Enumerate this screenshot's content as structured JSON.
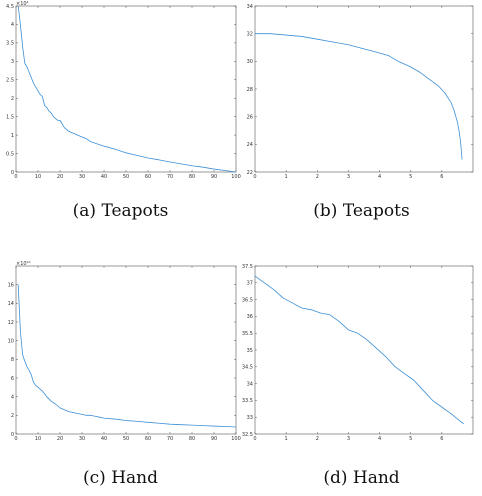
{
  "captions": [
    "(a) Teapots",
    "(b) Teapots",
    "(c) Hand",
    "(d) Hand"
  ],
  "line_color": "#3c8fd6",
  "chart_data": [
    {
      "type": "line",
      "title": "",
      "xlabel": "",
      "ylabel": "",
      "xlim": [
        0,
        100
      ],
      "ylim": [
        0,
        4.5
      ],
      "xticks": [
        0,
        10,
        20,
        30,
        40,
        50,
        60,
        70,
        80,
        90,
        100
      ],
      "yticks": [
        0,
        0.5,
        1,
        1.5,
        2,
        2.5,
        3,
        3.5,
        4,
        4.5
      ],
      "y_exponent_label": "×10⁴",
      "series": [
        {
          "x": [
            1,
            2,
            3,
            4,
            5,
            6,
            7,
            8,
            9,
            10,
            11,
            12,
            13,
            14,
            15,
            16,
            17,
            18,
            19,
            20,
            22,
            24,
            26,
            28,
            30,
            32,
            34,
            36,
            38,
            40,
            45,
            50,
            55,
            60,
            65,
            70,
            75,
            80,
            85,
            90,
            95,
            100
          ],
          "y": [
            4.5,
            4.0,
            3.4,
            2.95,
            2.85,
            2.7,
            2.55,
            2.4,
            2.3,
            2.2,
            2.1,
            2.05,
            1.8,
            1.75,
            1.65,
            1.6,
            1.5,
            1.45,
            1.4,
            1.4,
            1.2,
            1.1,
            1.05,
            1.0,
            0.95,
            0.9,
            0.82,
            0.78,
            0.74,
            0.7,
            0.62,
            0.52,
            0.45,
            0.38,
            0.33,
            0.27,
            0.22,
            0.17,
            0.13,
            0.08,
            0.04,
            0.0
          ]
        }
      ]
    },
    {
      "type": "line",
      "title": "",
      "xlabel": "",
      "ylabel": "",
      "xlim": [
        0,
        7
      ],
      "ylim": [
        22,
        34
      ],
      "xticks": [
        0,
        1,
        2,
        3,
        4,
        5,
        6
      ],
      "yticks": [
        22,
        24,
        26,
        28,
        30,
        32,
        34
      ],
      "series": [
        {
          "x": [
            0,
            0.5,
            1,
            1.5,
            2,
            2.5,
            3,
            3.5,
            4,
            4.3,
            4.6,
            5,
            5.3,
            5.6,
            5.9,
            6.1,
            6.3,
            6.4,
            6.5,
            6.55,
            6.6,
            6.63,
            6.65
          ],
          "y": [
            32,
            32,
            31.9,
            31.8,
            31.6,
            31.4,
            31.2,
            30.9,
            30.6,
            30.4,
            30.0,
            29.6,
            29.2,
            28.7,
            28.2,
            27.7,
            27.0,
            26.4,
            25.6,
            25.0,
            24.2,
            23.4,
            22.9
          ]
        }
      ]
    },
    {
      "type": "line",
      "title": "",
      "xlabel": "",
      "ylabel": "",
      "xlim": [
        0,
        100
      ],
      "ylim": [
        0,
        18
      ],
      "xticks": [
        0,
        10,
        20,
        30,
        40,
        50,
        60,
        70,
        80,
        90,
        100
      ],
      "yticks": [
        0,
        2,
        4,
        6,
        8,
        10,
        12,
        14,
        16
      ],
      "y_exponent_label": "×10¹⁰",
      "series": [
        {
          "x": [
            1,
            2,
            3,
            4,
            5,
            6,
            7,
            8,
            9,
            10,
            12,
            14,
            16,
            18,
            20,
            22,
            24,
            26,
            28,
            30,
            32,
            34,
            36,
            38,
            40,
            45,
            50,
            55,
            60,
            65,
            70,
            75,
            80,
            85,
            90,
            95,
            100
          ],
          "y": [
            16,
            11,
            8.5,
            7.8,
            7.2,
            6.8,
            6.3,
            5.5,
            5.2,
            5.0,
            4.6,
            4.0,
            3.5,
            3.2,
            2.8,
            2.6,
            2.4,
            2.3,
            2.2,
            2.1,
            2.0,
            2.0,
            1.9,
            1.8,
            1.7,
            1.6,
            1.45,
            1.35,
            1.25,
            1.15,
            1.05,
            1.0,
            0.95,
            0.9,
            0.85,
            0.8,
            0.75
          ]
        }
      ]
    },
    {
      "type": "line",
      "title": "",
      "xlabel": "",
      "ylabel": "",
      "xlim": [
        0,
        7
      ],
      "ylim": [
        32.5,
        37.5
      ],
      "xticks": [
        0,
        1,
        2,
        3,
        4,
        5,
        6
      ],
      "yticks": [
        32.5,
        33,
        33.5,
        34,
        34.5,
        35,
        35.5,
        36,
        36.5,
        37,
        37.5
      ],
      "series": [
        {
          "x": [
            0,
            0.3,
            0.6,
            0.9,
            1.2,
            1.5,
            1.8,
            2.1,
            2.4,
            2.7,
            3.0,
            3.3,
            3.6,
            3.9,
            4.2,
            4.5,
            4.8,
            5.1,
            5.4,
            5.7,
            6.0,
            6.3,
            6.5,
            6.7
          ],
          "y": [
            37.2,
            37.0,
            36.8,
            36.55,
            36.4,
            36.25,
            36.2,
            36.1,
            36.05,
            35.85,
            35.6,
            35.5,
            35.3,
            35.05,
            34.8,
            34.5,
            34.3,
            34.1,
            33.8,
            33.5,
            33.3,
            33.1,
            32.95,
            32.8
          ]
        }
      ]
    }
  ]
}
